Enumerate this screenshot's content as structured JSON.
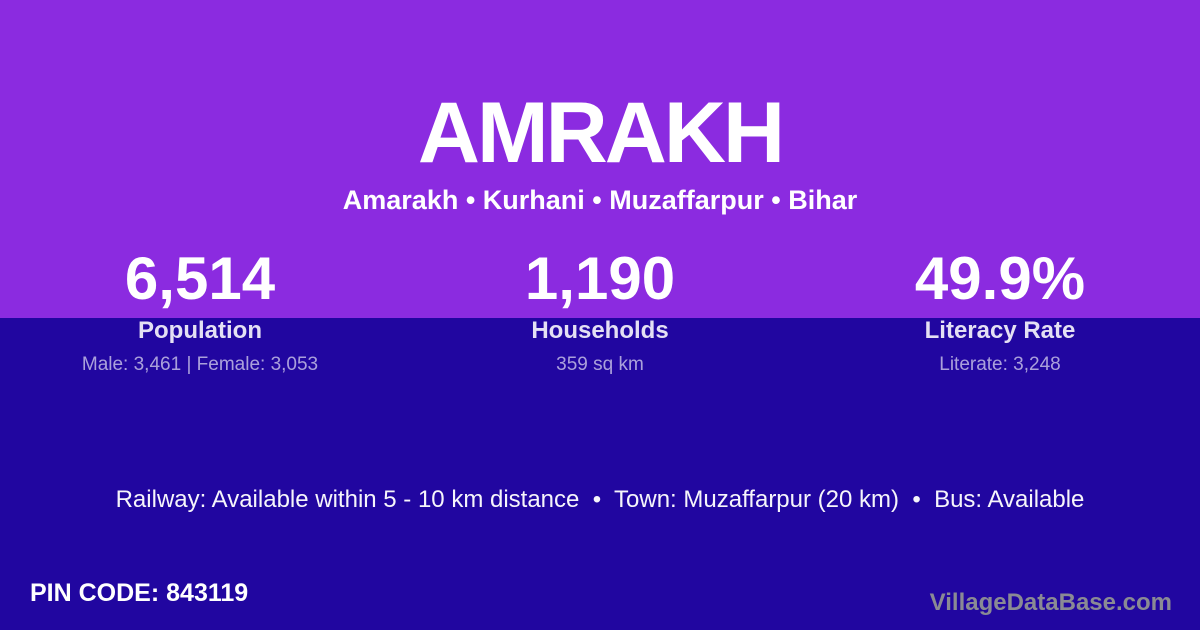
{
  "card": {
    "title": "AMRAKH",
    "subtitle": "Amarakh • Kurhani • Muzaffarpur • Bihar",
    "stats": [
      {
        "value": "6,514",
        "label": "Population",
        "detail": "Male: 3,461 | Female: 3,053"
      },
      {
        "value": "1,190",
        "label": "Households",
        "detail": "359 sq km"
      },
      {
        "value": "49.9%",
        "label": "Literacy Rate",
        "detail": "Literate: 3,248"
      }
    ],
    "transport_line": "Railway: Available within 5 - 10 km distance  •  Town: Muzaffarpur (20 km)  •  Bus: Available",
    "pin": {
      "label": "PIN CODE:",
      "value": "843119"
    },
    "watermark": "VillageDataBase.com",
    "colors": {
      "top_background": "#8B2BE0",
      "bottom_background": "#2106A0",
      "text_primary": "#FFFFFF",
      "text_muted": "#A89FD9",
      "watermark_text": "#8A8A94"
    }
  }
}
